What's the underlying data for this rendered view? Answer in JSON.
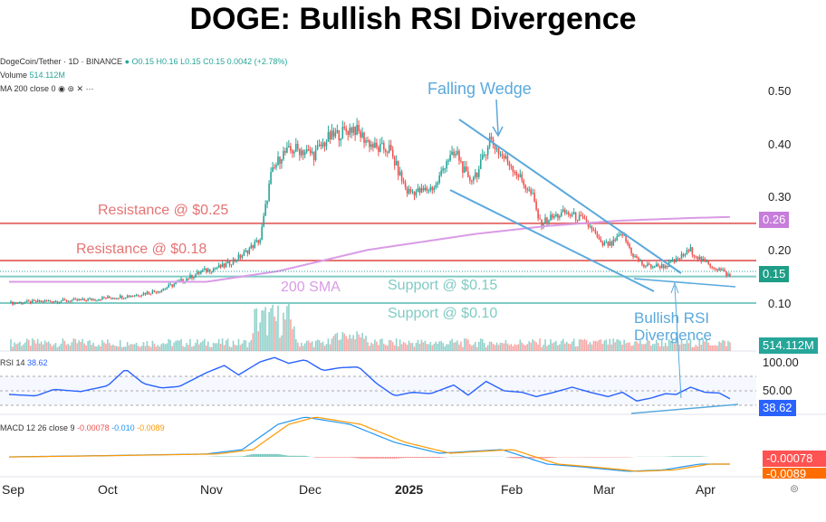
{
  "title": "DOGE: Bullish RSI Divergence",
  "legend": {
    "symbol": "DogeCoin/Tether · 1D · BINANCE",
    "ohlc": "O0.15 H0.16 L0.15 C0.15 0.0042 (+2.78%)",
    "volume_label": "Volume",
    "volume_value": "514.112M",
    "ma_label": "MA 200 close 0",
    "rsi_label": "RSI 14",
    "rsi_value": "38.62",
    "macd_label": "MACD 12 26 close 9",
    "macd_hist": "-0.00078",
    "macd_line": "-0.010",
    "macd_signal": "-0.0089"
  },
  "badges": {
    "sma": "0.26",
    "price": "0.15",
    "volume": "514.112M",
    "rsi": "38.62",
    "macd_hist": "-0.00078",
    "macd_signal": "-0.0089"
  },
  "colors": {
    "up": "#26a69a",
    "down": "#ef5350",
    "sma": "#d99be6",
    "resistance": "#e57373",
    "support": "#80cbc4",
    "annotation": "#5aa9dc",
    "rsi": "#2962ff",
    "macd": "#2196f3",
    "signal": "#ff9800"
  },
  "chart_data": {
    "type": "candlestick",
    "title": "DOGE: Bullish RSI Divergence",
    "price_ticks": [
      "0.50",
      "0.40",
      "0.30",
      "0.20",
      "0.10"
    ],
    "rsi_ticks": [
      "100.00",
      "50.00"
    ],
    "x_ticks": [
      "Sep",
      "Oct",
      "Nov",
      "Dec",
      "2025",
      "Feb",
      "Mar",
      "Apr"
    ],
    "price_path": [
      [
        0,
        0.1
      ],
      [
        25,
        0.104
      ],
      [
        40,
        0.105
      ],
      [
        55,
        0.11
      ],
      [
        70,
        0.115
      ],
      [
        85,
        0.125
      ],
      [
        95,
        0.14
      ],
      [
        108,
        0.16
      ],
      [
        120,
        0.17
      ],
      [
        130,
        0.19
      ],
      [
        140,
        0.22
      ],
      [
        146,
        0.34
      ],
      [
        152,
        0.38
      ],
      [
        160,
        0.39
      ],
      [
        170,
        0.38
      ],
      [
        178,
        0.41
      ],
      [
        185,
        0.42
      ],
      [
        192,
        0.43
      ],
      [
        198,
        0.41
      ],
      [
        205,
        0.39
      ],
      [
        212,
        0.39
      ],
      [
        218,
        0.34
      ],
      [
        222,
        0.31
      ],
      [
        230,
        0.31
      ],
      [
        238,
        0.32
      ],
      [
        244,
        0.37
      ],
      [
        250,
        0.38
      ],
      [
        256,
        0.33
      ],
      [
        262,
        0.35
      ],
      [
        268,
        0.41
      ],
      [
        274,
        0.38
      ],
      [
        280,
        0.36
      ],
      [
        286,
        0.33
      ],
      [
        292,
        0.3
      ],
      [
        296,
        0.25
      ],
      [
        302,
        0.26
      ],
      [
        310,
        0.27
      ],
      [
        318,
        0.26
      ],
      [
        325,
        0.24
      ],
      [
        330,
        0.21
      ],
      [
        336,
        0.21
      ],
      [
        342,
        0.23
      ],
      [
        348,
        0.19
      ],
      [
        354,
        0.17
      ],
      [
        360,
        0.17
      ],
      [
        366,
        0.17
      ],
      [
        372,
        0.18
      ],
      [
        380,
        0.2
      ],
      [
        386,
        0.18
      ],
      [
        392,
        0.17
      ],
      [
        398,
        0.16
      ],
      [
        402,
        0.15
      ]
    ],
    "sma200": [
      [
        0,
        0.14
      ],
      [
        60,
        0.14
      ],
      [
        110,
        0.14
      ],
      [
        150,
        0.16
      ],
      [
        200,
        0.2
      ],
      [
        260,
        0.23
      ],
      [
        300,
        0.245
      ],
      [
        340,
        0.255
      ],
      [
        380,
        0.26
      ],
      [
        402,
        0.262
      ]
    ],
    "rsi_path": [
      [
        0,
        45
      ],
      [
        15,
        43
      ],
      [
        25,
        52
      ],
      [
        40,
        49
      ],
      [
        55,
        57
      ],
      [
        65,
        80
      ],
      [
        75,
        60
      ],
      [
        85,
        54
      ],
      [
        95,
        56
      ],
      [
        110,
        75
      ],
      [
        120,
        85
      ],
      [
        128,
        72
      ],
      [
        140,
        90
      ],
      [
        148,
        96
      ],
      [
        156,
        88
      ],
      [
        165,
        93
      ],
      [
        175,
        78
      ],
      [
        185,
        82
      ],
      [
        195,
        83
      ],
      [
        205,
        60
      ],
      [
        215,
        43
      ],
      [
        225,
        48
      ],
      [
        235,
        46
      ],
      [
        248,
        58
      ],
      [
        256,
        44
      ],
      [
        266,
        63
      ],
      [
        276,
        50
      ],
      [
        286,
        48
      ],
      [
        294,
        42
      ],
      [
        304,
        48
      ],
      [
        314,
        55
      ],
      [
        324,
        48
      ],
      [
        334,
        42
      ],
      [
        342,
        48
      ],
      [
        350,
        36
      ],
      [
        358,
        40
      ],
      [
        366,
        46
      ],
      [
        372,
        45
      ],
      [
        380,
        55
      ],
      [
        388,
        48
      ],
      [
        396,
        47
      ],
      [
        402,
        39
      ]
    ],
    "macd_path": [
      [
        0,
        0
      ],
      [
        60,
        0.002
      ],
      [
        110,
        0.004
      ],
      [
        130,
        0.01
      ],
      [
        150,
        0.045
      ],
      [
        165,
        0.055
      ],
      [
        190,
        0.045
      ],
      [
        215,
        0.02
      ],
      [
        240,
        0.005
      ],
      [
        260,
        0.008
      ],
      [
        275,
        0.01
      ],
      [
        300,
        -0.01
      ],
      [
        320,
        -0.014
      ],
      [
        345,
        -0.02
      ],
      [
        365,
        -0.018
      ],
      [
        385,
        -0.01
      ],
      [
        402,
        -0.01
      ]
    ],
    "levels": [
      {
        "label": "Resistance @ $0.25",
        "value": 0.25,
        "kind": "resistance"
      },
      {
        "label": "Resistance @ $0.18",
        "value": 0.18,
        "kind": "resistance"
      },
      {
        "label": "Support @ $0.15",
        "value": 0.15,
        "kind": "support"
      },
      {
        "label": "Support @ $0.10",
        "value": 0.1,
        "kind": "support"
      }
    ],
    "annotations": {
      "wedge": "Falling Wedge",
      "sma": "200 SMA",
      "div1": "Bullish RSI",
      "div2": "Divergence"
    }
  }
}
